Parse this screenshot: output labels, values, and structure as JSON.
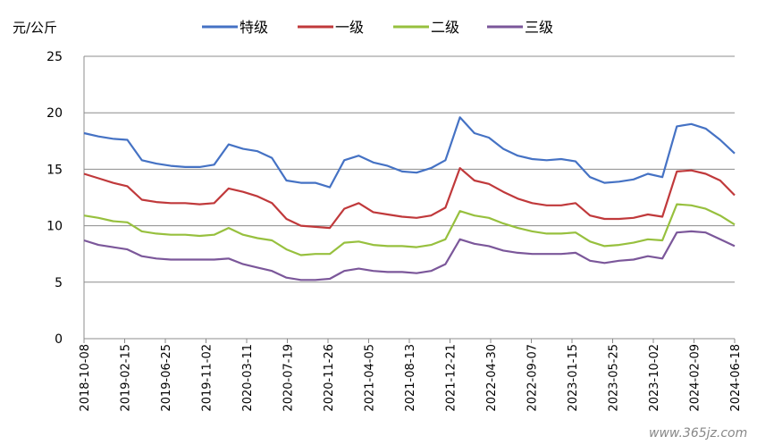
{
  "chart_data": {
    "type": "line",
    "ylabel": "元/公斤",
    "ylim": [
      0,
      25
    ],
    "yticks": [
      0,
      5,
      10,
      15,
      20,
      25
    ],
    "grid": true,
    "legend_position": "top",
    "x_ticks": [
      "2018-10-08",
      "2019-02-15",
      "2019-06-25",
      "2019-11-02",
      "2020-03-11",
      "2020-07-19",
      "2020-11-26",
      "2021-04-05",
      "2021-08-13",
      "2021-12-21",
      "2022-04-30",
      "2022-09-07",
      "2023-01-15",
      "2023-05-25",
      "2023-10-02",
      "2024-02-09",
      "2024-06-18"
    ],
    "series": [
      {
        "name": "特级",
        "color": "#4572C4",
        "values": [
          18.2,
          17.9,
          17.7,
          17.6,
          15.8,
          15.5,
          15.3,
          15.2,
          15.2,
          15.4,
          17.2,
          16.8,
          16.6,
          16.0,
          14.0,
          13.8,
          13.8,
          13.4,
          15.8,
          16.2,
          15.6,
          15.3,
          14.8,
          14.7,
          15.1,
          15.8,
          19.6,
          18.2,
          17.8,
          16.8,
          16.2,
          15.9,
          15.8,
          15.9,
          15.7,
          14.3,
          13.8,
          13.9,
          14.1,
          14.6,
          14.3,
          18.8,
          19.0,
          18.6,
          17.6,
          16.4
        ]
      },
      {
        "name": "一级",
        "color": "#C0393B",
        "values": [
          14.6,
          14.2,
          13.8,
          13.5,
          12.3,
          12.1,
          12.0,
          12.0,
          11.9,
          12.0,
          13.3,
          13.0,
          12.6,
          12.0,
          10.6,
          10.0,
          9.9,
          9.8,
          11.5,
          12.0,
          11.2,
          11.0,
          10.8,
          10.7,
          10.9,
          11.6,
          15.1,
          14.0,
          13.7,
          13.0,
          12.4,
          12.0,
          11.8,
          11.8,
          12.0,
          10.9,
          10.6,
          10.6,
          10.7,
          11.0,
          10.8,
          14.8,
          14.9,
          14.6,
          14.0,
          12.7
        ]
      },
      {
        "name": "二级",
        "color": "#97C03E",
        "values": [
          10.9,
          10.7,
          10.4,
          10.3,
          9.5,
          9.3,
          9.2,
          9.2,
          9.1,
          9.2,
          9.8,
          9.2,
          8.9,
          8.7,
          7.9,
          7.4,
          7.5,
          7.5,
          8.5,
          8.6,
          8.3,
          8.2,
          8.2,
          8.1,
          8.3,
          8.8,
          11.3,
          10.9,
          10.7,
          10.2,
          9.8,
          9.5,
          9.3,
          9.3,
          9.4,
          8.6,
          8.2,
          8.3,
          8.5,
          8.8,
          8.7,
          11.9,
          11.8,
          11.5,
          10.9,
          10.1
        ]
      },
      {
        "name": "三级",
        "color": "#7B579A",
        "values": [
          8.7,
          8.3,
          8.1,
          7.9,
          7.3,
          7.1,
          7.0,
          7.0,
          7.0,
          7.0,
          7.1,
          6.6,
          6.3,
          6.0,
          5.4,
          5.2,
          5.2,
          5.3,
          6.0,
          6.2,
          6.0,
          5.9,
          5.9,
          5.8,
          6.0,
          6.6,
          8.8,
          8.4,
          8.2,
          7.8,
          7.6,
          7.5,
          7.5,
          7.5,
          7.6,
          6.9,
          6.7,
          6.9,
          7.0,
          7.3,
          7.1,
          9.4,
          9.5,
          9.4,
          8.8,
          8.2
        ]
      }
    ]
  },
  "watermark": "www.365jz.com"
}
